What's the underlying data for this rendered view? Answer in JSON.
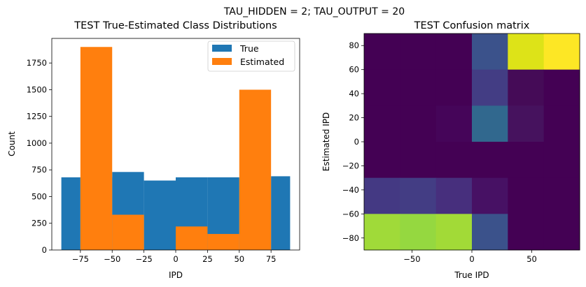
{
  "suptitle": "TAU_HIDDEN = 2; TAU_OUTPUT = 20",
  "chart_data": [
    {
      "type": "bar",
      "title": "TEST True-Estimated Class Distributions",
      "xlabel": "IPD",
      "ylabel": "Count",
      "xlim": [
        -97.5,
        97.5
      ],
      "ylim": [
        0,
        1980
      ],
      "xticks": [
        -75,
        -50,
        -25,
        0,
        25,
        50,
        75
      ],
      "xtick_labels": [
        "−75",
        "−50",
        "−25",
        "0",
        "25",
        "50",
        "75"
      ],
      "yticks": [
        0,
        250,
        500,
        750,
        1000,
        1250,
        1500,
        1750
      ],
      "ytick_labels": [
        "0",
        "250",
        "500",
        "750",
        "1000",
        "1250",
        "1500",
        "1750"
      ],
      "bin_edges": [
        -90,
        -75,
        -50,
        -25,
        0,
        25,
        50,
        75,
        90
      ],
      "series": [
        {
          "name": "True",
          "color": "#1f77b4",
          "values": [
            680,
            680,
            730,
            650,
            680,
            680,
            670,
            690
          ]
        },
        {
          "name": "Estimated",
          "color": "#ff7f0e",
          "values": [
            0,
            1900,
            330,
            0,
            220,
            150,
            1500,
            0
          ]
        }
      ],
      "legend": {
        "position": "top-right",
        "labels": [
          "True",
          "Estimated"
        ]
      }
    },
    {
      "type": "heatmap",
      "title": "TEST Confusion matrix",
      "xlabel": "True IPD",
      "ylabel": "Estimated IPD",
      "xlim": [
        -90,
        90
      ],
      "ylim": [
        -90,
        90
      ],
      "xticks": [
        -50,
        0,
        50
      ],
      "xtick_labels": [
        "−50",
        "0",
        "50"
      ],
      "yticks": [
        -80,
        -60,
        -40,
        -20,
        0,
        20,
        40,
        60,
        80
      ],
      "ytick_labels": [
        "−80",
        "−60",
        "−40",
        "−20",
        "0",
        "20",
        "40",
        "60",
        "80"
      ],
      "x_edges": [
        -90,
        -60,
        -30,
        0,
        30,
        60,
        90
      ],
      "y_edges": [
        -90,
        -60,
        -30,
        0,
        30,
        60,
        90
      ],
      "rows_top_to_bottom": [
        [
          "#440154",
          "#440154",
          "#440154",
          "#3b528b",
          "#dde318",
          "#fde725"
        ],
        [
          "#440154",
          "#440154",
          "#440154",
          "#433d84",
          "#450b57",
          "#440154"
        ],
        [
          "#440154",
          "#440154",
          "#450559",
          "#31688e",
          "#46125e",
          "#440154"
        ],
        [
          "#440154",
          "#440154",
          "#440154",
          "#440154",
          "#440154",
          "#440154"
        ],
        [
          "#443983",
          "#433d84",
          "#472f7d",
          "#471164",
          "#440154",
          "#440154"
        ],
        [
          "#a0da39",
          "#95d840",
          "#a2da37",
          "#3b528b",
          "#440154",
          "#440154"
        ]
      ]
    }
  ]
}
